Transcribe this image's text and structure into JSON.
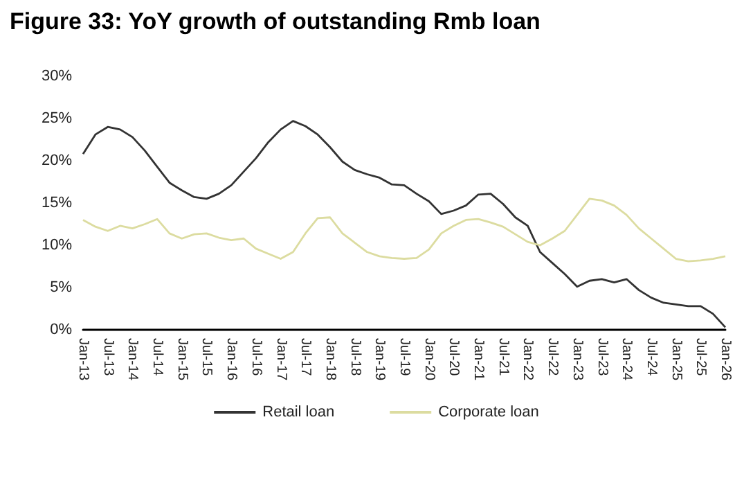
{
  "chart_data": {
    "type": "line",
    "title": "Figure 33: YoY growth of outstanding Rmb loan",
    "categories": [
      "Jan-13",
      null,
      "Jul-13",
      null,
      "Jan-14",
      null,
      "Jul-14",
      null,
      "Jan-15",
      null,
      "Jul-15",
      null,
      "Jan-16",
      null,
      "Jul-16",
      null,
      "Jan-17",
      null,
      "Jul-17",
      null,
      "Jan-18",
      null,
      "Jul-18",
      null,
      "Jan-19",
      null,
      "Jul-19",
      null,
      "Jan-20",
      null,
      "Jul-20",
      null,
      "Jan-21",
      null,
      "Jul-21",
      null,
      "Jan-22",
      null,
      "Jul-22",
      null,
      "Jan-23",
      null,
      "Jul-23",
      null,
      "Jan-24",
      null,
      "Jul-24",
      null,
      "Jan-25",
      null,
      "Jul-25",
      null,
      "Jan-26"
    ],
    "series": [
      {
        "name": "Retail loan",
        "color": "#333333",
        "values": [
          20.8,
          23.1,
          24.0,
          23.7,
          22.8,
          21.2,
          19.3,
          17.4,
          16.5,
          15.7,
          15.5,
          16.1,
          17.1,
          18.7,
          20.3,
          22.2,
          23.7,
          24.7,
          24.1,
          23.1,
          21.6,
          19.9,
          18.9,
          18.4,
          18.0,
          17.2,
          17.1,
          16.1,
          15.2,
          13.7,
          14.1,
          14.7,
          16.0,
          16.1,
          14.9,
          13.3,
          12.3,
          9.2,
          7.9,
          6.6,
          5.1,
          5.8,
          6.0,
          5.6,
          6.0,
          4.7,
          3.8,
          3.2,
          3.0,
          2.8,
          2.8,
          1.9,
          0.3
        ]
      },
      {
        "name": "Corporate loan",
        "color": "#dcdca0",
        "values": [
          13.0,
          12.2,
          11.7,
          12.3,
          12.0,
          12.5,
          13.1,
          11.4,
          10.8,
          11.3,
          11.4,
          10.9,
          10.6,
          10.8,
          9.6,
          9.0,
          8.4,
          9.2,
          11.4,
          13.2,
          13.3,
          11.4,
          10.3,
          9.2,
          8.7,
          8.5,
          8.4,
          8.5,
          9.5,
          11.4,
          12.3,
          13.0,
          13.1,
          12.7,
          12.2,
          11.3,
          10.4,
          10.0,
          10.8,
          11.7,
          13.6,
          15.5,
          15.3,
          14.7,
          13.6,
          12.0,
          10.8,
          9.6,
          8.4,
          8.1,
          8.2,
          8.4,
          8.7
        ]
      }
    ],
    "ylim": [
      0,
      30
    ],
    "yticks": [
      {
        "value": 0,
        "label": "0%"
      },
      {
        "value": 5,
        "label": "5%"
      },
      {
        "value": 10,
        "label": "10%"
      },
      {
        "value": 15,
        "label": "15%"
      },
      {
        "value": 20,
        "label": "20%"
      },
      {
        "value": 25,
        "label": "25%"
      },
      {
        "value": 30,
        "label": "30%"
      }
    ],
    "grid": false,
    "legend": "bottom",
    "marker": "none",
    "line_style": "solid"
  }
}
